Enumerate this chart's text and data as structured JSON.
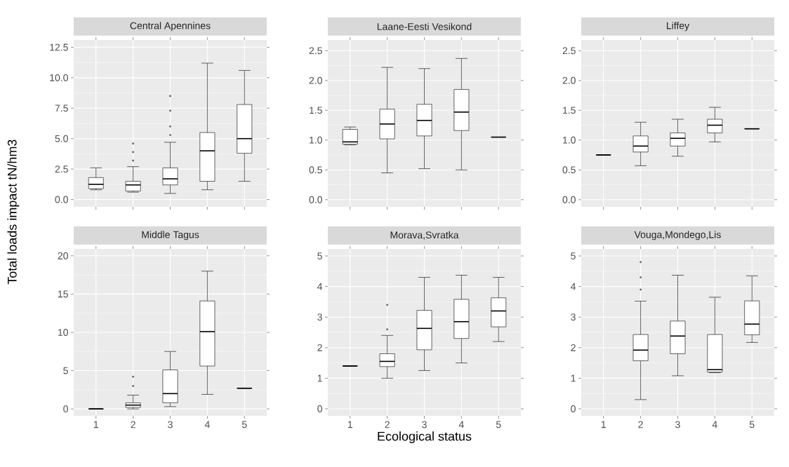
{
  "chart_data": [
    {
      "type": "box",
      "title": "Central Apennines",
      "ylabel": "Total loads impact tN/hm3",
      "categories": [
        "1",
        "2",
        "3",
        "4",
        "5"
      ],
      "tick_labels": "y",
      "grid": true,
      "ylim": [
        -0.6,
        13.1
      ],
      "yticks": [
        {
          "value": 0,
          "label": "0.0"
        },
        {
          "value": 2.5,
          "label": "2.5"
        },
        {
          "value": 5,
          "label": "5.0"
        },
        {
          "value": 7.5,
          "label": "7.5"
        },
        {
          "value": 10,
          "label": "10.0"
        },
        {
          "value": 12.5,
          "label": "12.5"
        }
      ],
      "boxes": [
        {
          "low": 0.8,
          "q1": 0.9,
          "median": 1.25,
          "q3": 1.8,
          "high": 2.6
        },
        {
          "low": 0.6,
          "q1": 0.7,
          "median": 1.2,
          "q3": 1.5,
          "high": 2.7,
          "outliers": [
            3.2,
            3.9,
            4.6
          ]
        },
        {
          "low": 0.5,
          "q1": 1.2,
          "median": 1.7,
          "q3": 2.6,
          "high": 4.7,
          "outliers": [
            5.3,
            6.0,
            7.3,
            8.5
          ]
        },
        {
          "low": 0.8,
          "q1": 1.5,
          "median": 4.0,
          "q3": 5.5,
          "high": 11.2
        },
        {
          "low": 1.5,
          "q1": 3.8,
          "median": 5.0,
          "q3": 7.8,
          "high": 10.6
        }
      ]
    },
    {
      "type": "box",
      "title": "Laane-Eesti Vesikond",
      "categories": [
        "1",
        "2",
        "3",
        "4",
        "5"
      ],
      "tick_labels": "y",
      "grid": true,
      "ylim": [
        -0.12,
        2.68
      ],
      "yticks": [
        {
          "value": 0,
          "label": "0.0"
        },
        {
          "value": 0.5,
          "label": "0.5"
        },
        {
          "value": 1,
          "label": "1.0"
        },
        {
          "value": 1.5,
          "label": "1.5"
        },
        {
          "value": 2,
          "label": "2.0"
        },
        {
          "value": 2.5,
          "label": "2.5"
        }
      ],
      "boxes": [
        {
          "low": 0.92,
          "q1": 0.93,
          "median": 0.97,
          "q3": 1.18,
          "high": 1.22
        },
        {
          "low": 0.45,
          "q1": 1.02,
          "median": 1.27,
          "q3": 1.52,
          "high": 2.22
        },
        {
          "low": 0.52,
          "q1": 1.07,
          "median": 1.33,
          "q3": 1.6,
          "high": 2.2
        },
        {
          "low": 0.5,
          "q1": 1.16,
          "median": 1.47,
          "q3": 1.85,
          "high": 2.37
        },
        {
          "low": 1.05,
          "q1": 1.05,
          "median": 1.05,
          "q3": 1.05,
          "high": 1.05
        }
      ]
    },
    {
      "type": "box",
      "title": "Liffey",
      "categories": [
        "1",
        "2",
        "3",
        "4",
        "5"
      ],
      "tick_labels": "y",
      "grid": true,
      "ylim": [
        -0.12,
        2.68
      ],
      "yticks": [
        {
          "value": 0,
          "label": "0.0"
        },
        {
          "value": 0.5,
          "label": "0.5"
        },
        {
          "value": 1,
          "label": "1.0"
        },
        {
          "value": 1.5,
          "label": "1.5"
        },
        {
          "value": 2,
          "label": "2.0"
        },
        {
          "value": 2.5,
          "label": "2.5"
        }
      ],
      "boxes": [
        {
          "low": 0.75,
          "q1": 0.75,
          "median": 0.75,
          "q3": 0.75,
          "high": 0.75
        },
        {
          "low": 0.57,
          "q1": 0.8,
          "median": 0.9,
          "q3": 1.07,
          "high": 1.3
        },
        {
          "low": 0.73,
          "q1": 0.9,
          "median": 1.03,
          "q3": 1.12,
          "high": 1.35
        },
        {
          "low": 0.97,
          "q1": 1.12,
          "median": 1.25,
          "q3": 1.35,
          "high": 1.55
        },
        {
          "low": 1.19,
          "q1": 1.19,
          "median": 1.19,
          "q3": 1.19,
          "high": 1.19
        }
      ]
    },
    {
      "type": "box",
      "title": "Middle Tagus",
      "categories": [
        "1",
        "2",
        "3",
        "4",
        "5"
      ],
      "grid": true,
      "ylim": [
        -0.9,
        20.9
      ],
      "yticks": [
        0,
        5,
        10,
        15,
        20
      ],
      "boxes": [
        {
          "low": 0,
          "q1": 0,
          "median": 0,
          "q3": 0,
          "high": 0
        },
        {
          "low": 0,
          "q1": 0.2,
          "median": 0.5,
          "q3": 0.8,
          "high": 1.8,
          "outliers": [
            3.0,
            4.2
          ]
        },
        {
          "low": 0.3,
          "q1": 0.8,
          "median": 2.0,
          "q3": 5.1,
          "high": 7.5
        },
        {
          "low": 1.9,
          "q1": 5.6,
          "median": 10.1,
          "q3": 14.1,
          "high": 18
        },
        {
          "low": 2.7,
          "q1": 2.7,
          "median": 2.7,
          "q3": 2.7,
          "high": 2.7
        }
      ]
    },
    {
      "type": "box",
      "title": "Morava,Svratka",
      "xlabel": "Ecological status",
      "categories": [
        "1",
        "2",
        "3",
        "4",
        "5"
      ],
      "grid": true,
      "ylim": [
        -0.23,
        5.23
      ],
      "yticks": [
        0,
        1,
        2,
        3,
        4,
        5
      ],
      "boxes": [
        {
          "low": 1.4,
          "q1": 1.4,
          "median": 1.4,
          "q3": 1.4,
          "high": 1.4
        },
        {
          "low": 1.0,
          "q1": 1.38,
          "median": 1.55,
          "q3": 1.8,
          "high": 2.4,
          "outliers": [
            2.6,
            3.4
          ]
        },
        {
          "low": 1.25,
          "q1": 1.93,
          "median": 2.63,
          "q3": 3.22,
          "high": 4.3
        },
        {
          "low": 1.5,
          "q1": 2.3,
          "median": 2.85,
          "q3": 3.58,
          "high": 4.37
        },
        {
          "low": 2.2,
          "q1": 2.68,
          "median": 3.2,
          "q3": 3.63,
          "high": 4.3
        }
      ]
    },
    {
      "type": "box",
      "title": "Vouga,Mondego,Lis",
      "categories": [
        "1",
        "2",
        "3",
        "4",
        "5"
      ],
      "grid": true,
      "ylim": [
        -0.23,
        5.23
      ],
      "yticks": [
        0,
        1,
        2,
        3,
        4,
        5
      ],
      "boxes": [
        null,
        {
          "low": 0.3,
          "q1": 1.57,
          "median": 1.92,
          "q3": 2.43,
          "high": 3.52,
          "outliers": [
            3.9,
            4.3,
            4.8
          ]
        },
        {
          "low": 1.08,
          "q1": 1.8,
          "median": 2.38,
          "q3": 2.87,
          "high": 4.37
        },
        {
          "low": 1.18,
          "q1": 1.2,
          "median": 1.28,
          "q3": 2.43,
          "high": 3.65
        },
        {
          "low": 2.17,
          "q1": 2.42,
          "median": 2.77,
          "q3": 3.53,
          "high": 4.35
        }
      ]
    }
  ]
}
